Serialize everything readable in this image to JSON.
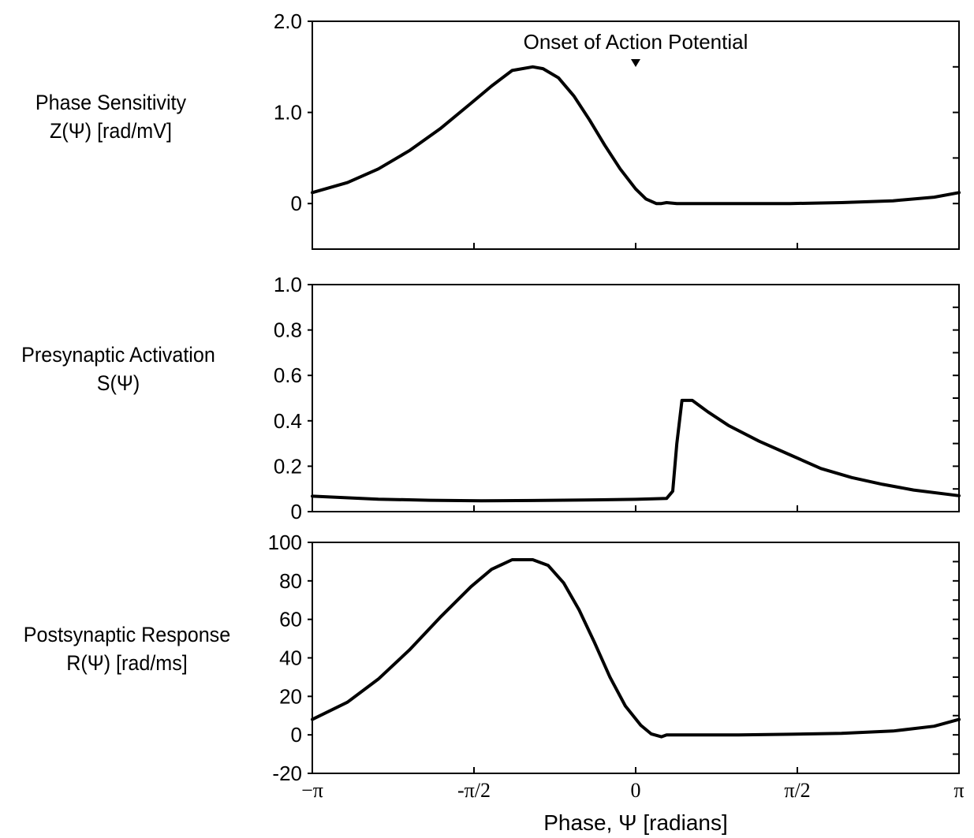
{
  "figure": {
    "xlabel": "Phase, Ψ  [radians]",
    "x_tick_labels": [
      "−π",
      "-π/2",
      "0",
      "π/2",
      "π"
    ],
    "annotation": "Onset of Action Potential",
    "rows": [
      {
        "line1": "Phase Sensitivity",
        "line2": "Z(Ψ) [rad/mV]"
      },
      {
        "line1": "Presynaptic Activation",
        "line2": "S(Ψ)"
      },
      {
        "line1": "Postsynaptic Response",
        "line2": "R(Ψ) [rad/ms]"
      }
    ]
  },
  "chart_data": [
    {
      "type": "line",
      "title": "",
      "ylabel": "Phase Sensitivity Z(Ψ) [rad/mV]",
      "xlabel": "",
      "xlim": [
        -3.1416,
        3.1416
      ],
      "ylim": [
        -0.5,
        2.0
      ],
      "y_ticks": [
        {
          "v": 2.0,
          "label": "2.0"
        },
        {
          "v": 1.0,
          "label": "1.0"
        },
        {
          "v": 0,
          "label": "0"
        }
      ],
      "annotation": {
        "text": "Onset of Action Potential",
        "x": 0
      },
      "series": [
        {
          "x": [
            -3.1416,
            -2.8,
            -2.5,
            -2.2,
            -1.9,
            -1.6,
            -1.4,
            -1.2,
            -1.0,
            -0.9,
            -0.75,
            -0.6,
            -0.45,
            -0.3,
            -0.15,
            0.0,
            0.1,
            0.2,
            0.25,
            0.3,
            0.4,
            0.5,
            1.0,
            1.5,
            2.0,
            2.5,
            2.9,
            3.1416
          ],
          "y": [
            0.12,
            0.23,
            0.38,
            0.58,
            0.82,
            1.1,
            1.29,
            1.46,
            1.5,
            1.48,
            1.38,
            1.18,
            0.92,
            0.64,
            0.38,
            0.16,
            0.05,
            0.0,
            0.0,
            0.01,
            0.0,
            0.0,
            0.0,
            0.0,
            0.01,
            0.03,
            0.07,
            0.12
          ]
        }
      ]
    },
    {
      "type": "line",
      "title": "",
      "ylabel": "Presynaptic Activation S(Ψ)",
      "xlabel": "",
      "xlim": [
        -3.1416,
        3.1416
      ],
      "ylim": [
        0,
        1.0
      ],
      "y_ticks": [
        {
          "v": 1.0,
          "label": "1.0"
        },
        {
          "v": 0.8,
          "label": "0.8"
        },
        {
          "v": 0.6,
          "label": "0.6"
        },
        {
          "v": 0.4,
          "label": "0.4"
        },
        {
          "v": 0.2,
          "label": "0.2"
        },
        {
          "v": 0,
          "label": "0"
        }
      ],
      "series": [
        {
          "x": [
            -3.1416,
            -2.5,
            -2.0,
            -1.5,
            -1.0,
            -0.5,
            0.0,
            0.3,
            0.36,
            0.4,
            0.45,
            0.55,
            0.7,
            0.9,
            1.2,
            1.5,
            1.8,
            2.1,
            2.4,
            2.7,
            3.1416
          ],
          "y": [
            0.068,
            0.055,
            0.05,
            0.048,
            0.049,
            0.051,
            0.054,
            0.058,
            0.09,
            0.3,
            0.49,
            0.49,
            0.44,
            0.38,
            0.31,
            0.25,
            0.19,
            0.15,
            0.12,
            0.095,
            0.07
          ]
        }
      ]
    },
    {
      "type": "line",
      "title": "",
      "ylabel": "Postsynaptic Response R(Ψ) [rad/ms]",
      "xlabel": "Phase, Ψ  [radians]",
      "xlim": [
        -3.1416,
        3.1416
      ],
      "ylim": [
        -20,
        100
      ],
      "y_ticks": [
        {
          "v": 100,
          "label": "100"
        },
        {
          "v": 80,
          "label": "80"
        },
        {
          "v": 60,
          "label": "60"
        },
        {
          "v": 40,
          "label": "40"
        },
        {
          "v": 20,
          "label": "20"
        },
        {
          "v": 0,
          "label": "0"
        },
        {
          "v": -20,
          "label": "-20"
        }
      ],
      "x_ticks": [
        {
          "v": -3.1416,
          "label": "−π"
        },
        {
          "v": -1.5708,
          "label": "-π/2"
        },
        {
          "v": 0,
          "label": "0"
        },
        {
          "v": 1.5708,
          "label": "π/2"
        },
        {
          "v": 3.1416,
          "label": "π"
        }
      ],
      "series": [
        {
          "x": [
            -3.1416,
            -2.8,
            -2.5,
            -2.2,
            -1.9,
            -1.6,
            -1.4,
            -1.2,
            -1.0,
            -0.85,
            -0.7,
            -0.55,
            -0.4,
            -0.25,
            -0.1,
            0.05,
            0.15,
            0.25,
            0.3,
            0.4,
            0.6,
            1.0,
            1.5,
            2.0,
            2.5,
            2.9,
            3.1416
          ],
          "y": [
            8,
            17,
            29,
            44,
            61,
            77,
            86,
            91,
            91,
            88,
            79,
            65,
            48,
            30,
            15,
            5,
            0.5,
            -1,
            0,
            0,
            0,
            0,
            0.3,
            0.8,
            2,
            4.5,
            8
          ]
        }
      ]
    }
  ]
}
